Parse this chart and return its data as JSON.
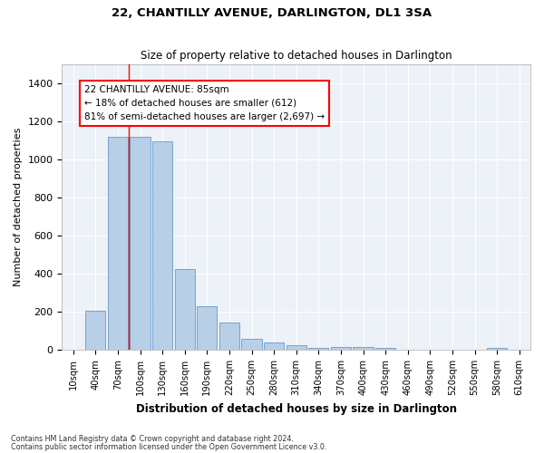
{
  "title1": "22, CHANTILLY AVENUE, DARLINGTON, DL1 3SA",
  "title2": "Size of property relative to detached houses in Darlington",
  "xlabel": "Distribution of detached houses by size in Darlington",
  "ylabel": "Number of detached properties",
  "bar_color": "#b8cfe8",
  "bar_edge_color": "#6898c8",
  "background_color": "#edf1f8",
  "grid_color": "#ffffff",
  "categories": [
    "10sqm",
    "40sqm",
    "70sqm",
    "100sqm",
    "130sqm",
    "160sqm",
    "190sqm",
    "220sqm",
    "250sqm",
    "280sqm",
    "310sqm",
    "340sqm",
    "370sqm",
    "400sqm",
    "430sqm",
    "460sqm",
    "490sqm",
    "520sqm",
    "550sqm",
    "580sqm",
    "610sqm"
  ],
  "values": [
    0,
    207,
    1120,
    1120,
    1095,
    425,
    230,
    145,
    57,
    37,
    25,
    10,
    13,
    15,
    12,
    0,
    0,
    0,
    0,
    12,
    0
  ],
  "ylim": [
    0,
    1500
  ],
  "yticks": [
    0,
    200,
    400,
    600,
    800,
    1000,
    1200,
    1400
  ],
  "property_line_bin": 2.5,
  "annotation_text": "22 CHANTILLY AVENUE: 85sqm\n← 18% of detached houses are smaller (612)\n81% of semi-detached houses are larger (2,697) →",
  "footer1": "Contains HM Land Registry data © Crown copyright and database right 2024.",
  "footer2": "Contains public sector information licensed under the Open Government Licence v3.0."
}
